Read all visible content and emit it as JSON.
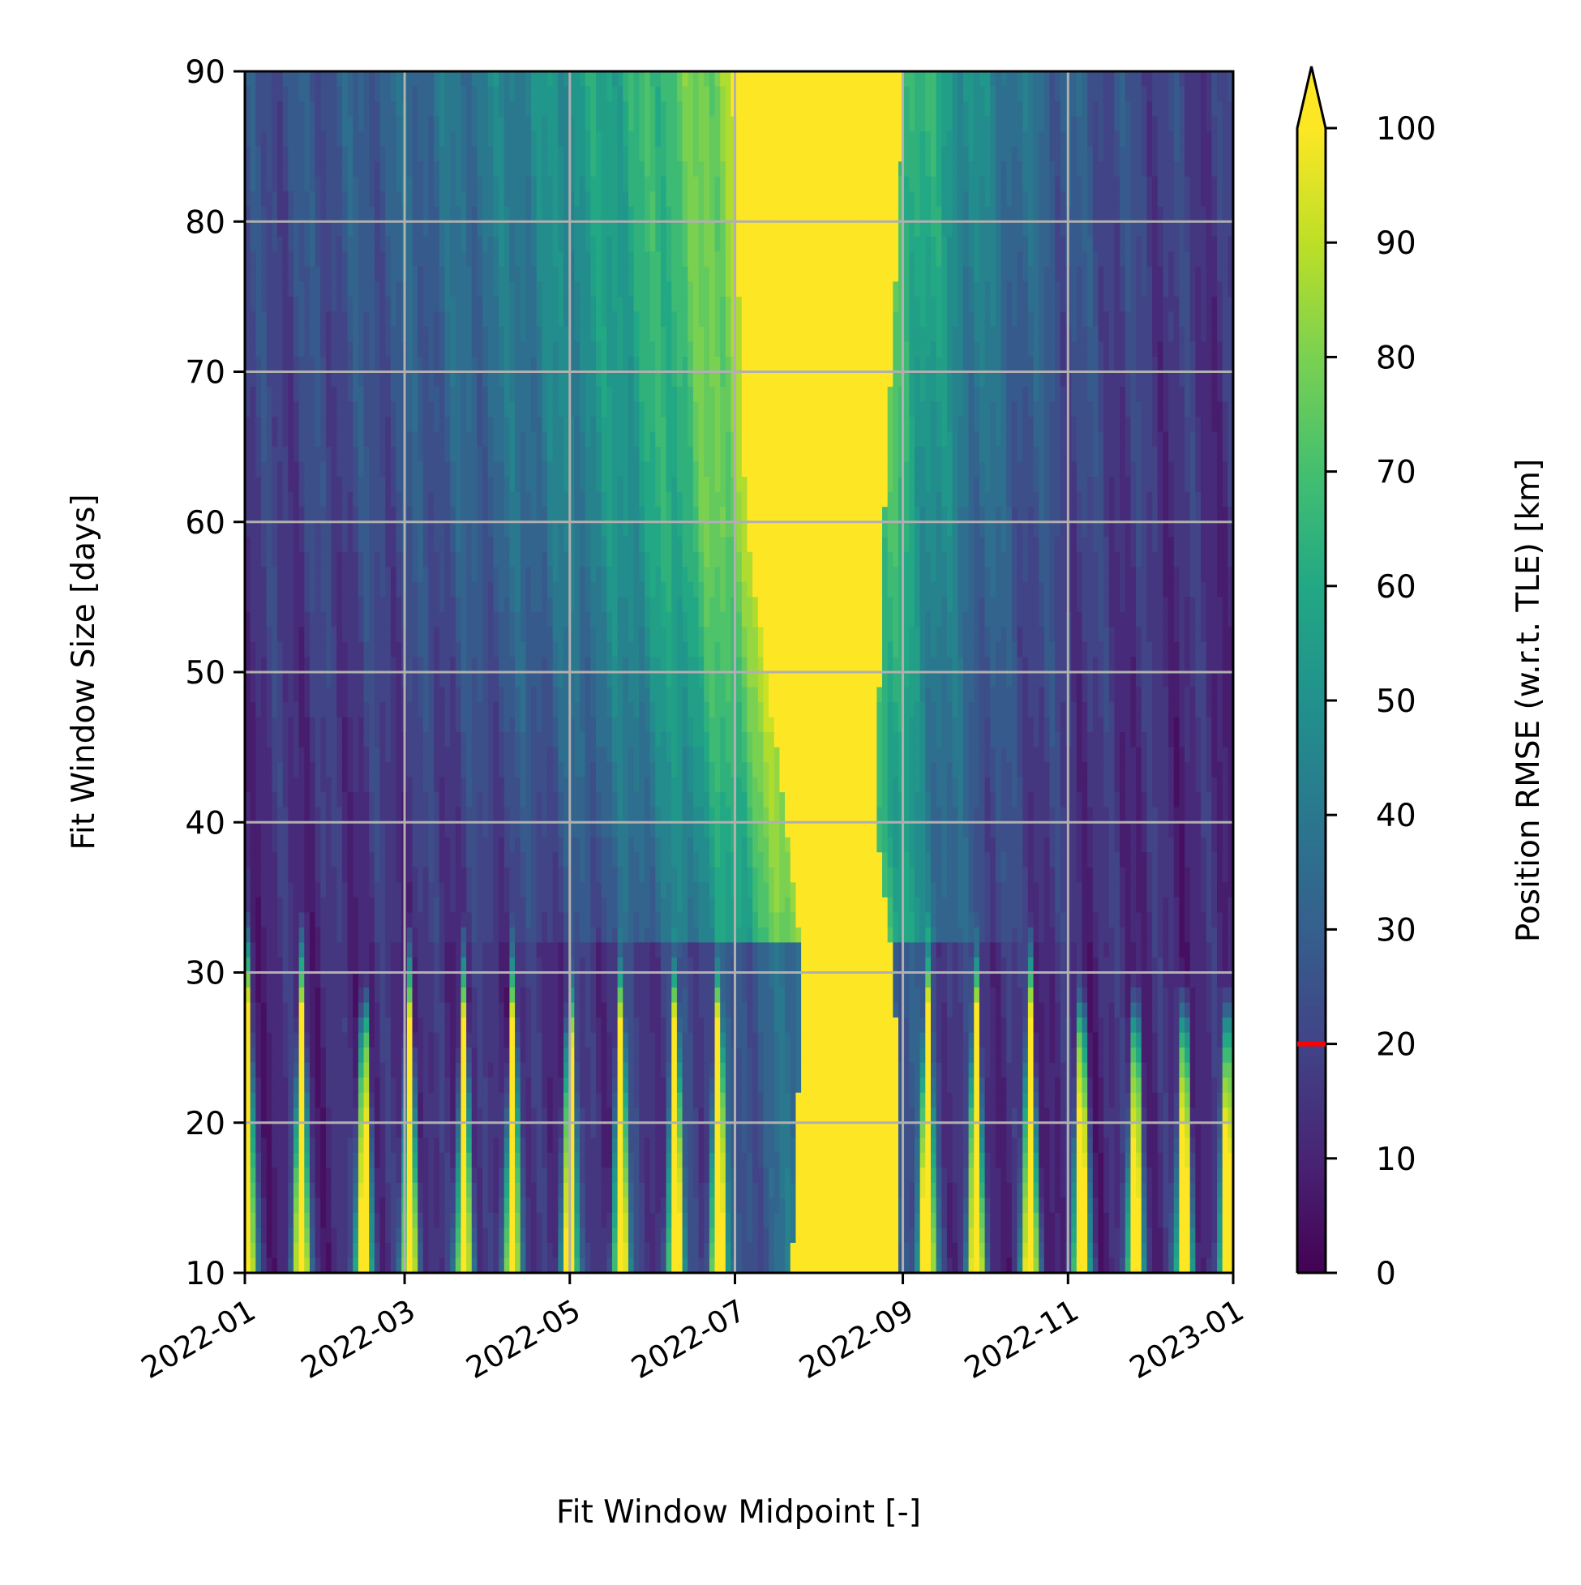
{
  "chart_data": {
    "type": "heatmap",
    "subtype": "filled-contour",
    "title": "",
    "xlabel": "Fit Window Midpoint [-]",
    "ylabel": "Fit Window Size [days]",
    "x_type": "date",
    "xlim": [
      "2022-01-01",
      "2023-01-01"
    ],
    "x_ticks": [
      "2022-01",
      "2022-03",
      "2022-05",
      "2022-07",
      "2022-09",
      "2022-11",
      "2023-01"
    ],
    "ylim": [
      10,
      90
    ],
    "y_ticks": [
      10,
      20,
      30,
      40,
      50,
      60,
      70,
      80,
      90
    ],
    "grid": true,
    "colormap": "viridis",
    "colorbar": {
      "label": "Position RMSE (w.r.t. TLE) [km]",
      "range": [
        0,
        100
      ],
      "ticks": [
        0,
        10,
        20,
        30,
        40,
        50,
        60,
        70,
        80,
        90,
        100
      ],
      "extend": "max",
      "reference_line": {
        "value": 20,
        "color": "#ff0000"
      }
    },
    "description_features": {
      "high_error_band": {
        "note": "RMSE >= 100 km region centered near 2022-08",
        "left_edge": [
          [
            "2022-07-22",
            10
          ],
          [
            "2022-07-26",
            30
          ],
          [
            "2022-07-20",
            40
          ],
          [
            "2022-07-05",
            60
          ],
          [
            "2022-06-30",
            90
          ]
        ],
        "right_edge": [
          [
            "2022-08-31",
            10
          ],
          [
            "2022-08-29",
            30
          ],
          [
            "2022-08-22",
            40
          ],
          [
            "2022-08-25",
            60
          ],
          [
            "2022-09-02",
            90
          ]
        ]
      },
      "small_window_stripes": {
        "note": "alternating high/low error at window sizes below ~30 days",
        "peak_dates": [
          "2022-01-02",
          "2022-01-22",
          "2022-02-14",
          "2022-03-03",
          "2022-03-23",
          "2022-04-10",
          "2022-05-01",
          "2022-05-20",
          "2022-06-09",
          "2022-06-25",
          "2022-09-10",
          "2022-09-28",
          "2022-10-18",
          "2022-11-06",
          "2022-11-26",
          "2022-12-14",
          "2022-12-30"
        ]
      }
    }
  }
}
